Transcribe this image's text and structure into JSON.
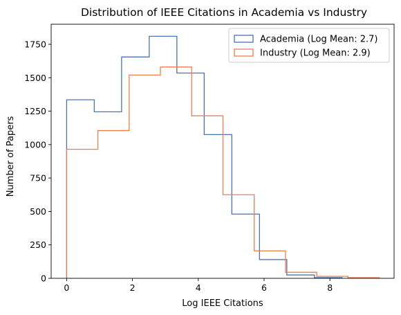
{
  "chart_data": {
    "type": "histogram",
    "title": "Distribution of IEEE Citations in Academia vs Industry",
    "xlabel": "Log IEEE Citations",
    "ylabel": "Number of Papers",
    "xlim": [
      -0.47,
      9.95
    ],
    "ylim": [
      0,
      1900
    ],
    "xticks": [
      0,
      2,
      4,
      6,
      8
    ],
    "yticks": [
      0,
      250,
      500,
      750,
      1000,
      1250,
      1500,
      1750
    ],
    "grid": false,
    "legend_position": "top-right",
    "series": [
      {
        "name": "Academia (Log Mean: 2.7)",
        "color": "#4c72b0",
        "bin_edges": [
          0,
          0.84,
          1.67,
          2.51,
          3.35,
          4.18,
          5.02,
          5.86,
          6.69,
          7.53,
          8.37
        ],
        "values": [
          1335,
          1245,
          1655,
          1810,
          1535,
          1075,
          480,
          140,
          25,
          5
        ]
      },
      {
        "name": "Industry (Log Mean: 2.9)",
        "color": "#ee7d4f",
        "bin_edges": [
          0,
          0.95,
          1.9,
          2.85,
          3.8,
          4.75,
          5.7,
          6.65,
          7.6,
          8.55,
          9.5
        ],
        "values": [
          965,
          1105,
          1520,
          1580,
          1215,
          625,
          205,
          45,
          15,
          5
        ]
      }
    ]
  }
}
